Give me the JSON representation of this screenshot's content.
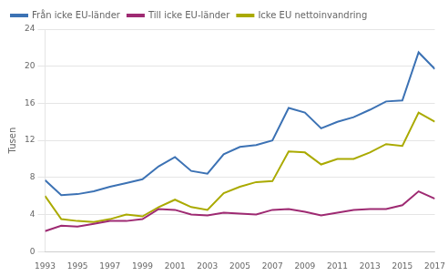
{
  "chart_data": {
    "type": "line",
    "ylabel": "Tusen",
    "x": [
      1993,
      1994,
      1995,
      1996,
      1997,
      1998,
      1999,
      2000,
      2001,
      2002,
      2003,
      2004,
      2005,
      2006,
      2007,
      2008,
      2009,
      2010,
      2011,
      2012,
      2013,
      2014,
      2015,
      2016,
      2017
    ],
    "series": [
      {
        "name": "Från icke EU-länder",
        "color": "#3c72b4",
        "values": [
          7.7,
          6.1,
          6.2,
          6.5,
          7.0,
          7.4,
          7.8,
          9.2,
          10.2,
          8.7,
          8.4,
          10.5,
          11.3,
          11.5,
          12.0,
          15.5,
          15.0,
          13.3,
          14.0,
          14.5,
          15.3,
          16.2,
          16.3,
          21.5,
          19.7
        ]
      },
      {
        "name": "Till icke EU-länder",
        "color": "#9e2a72",
        "values": [
          2.2,
          2.8,
          2.7,
          3.0,
          3.3,
          3.3,
          3.5,
          4.6,
          4.5,
          4.0,
          3.9,
          4.2,
          4.1,
          4.0,
          4.5,
          4.6,
          4.3,
          3.9,
          4.2,
          4.5,
          4.6,
          4.6,
          5.0,
          6.5,
          5.7
        ]
      },
      {
        "name": "Icke EU nettoinvandring",
        "color": "#aaaa00",
        "values": [
          6.0,
          3.5,
          3.3,
          3.2,
          3.5,
          4.0,
          3.8,
          4.8,
          5.6,
          4.8,
          4.5,
          6.3,
          7.0,
          7.5,
          7.6,
          10.8,
          10.7,
          9.4,
          10.0,
          10.0,
          10.7,
          11.6,
          11.4,
          15.0,
          14.0
        ]
      }
    ],
    "xlim": [
      1993,
      2017
    ],
    "xticks": [
      1993,
      1995,
      1997,
      1999,
      2001,
      2003,
      2005,
      2007,
      2009,
      2011,
      2013,
      2015,
      2017
    ],
    "ylim": [
      0,
      24
    ],
    "yticks": [
      0,
      4,
      8,
      12,
      16,
      20,
      24
    ],
    "grid": "y",
    "legend": "upper left"
  }
}
